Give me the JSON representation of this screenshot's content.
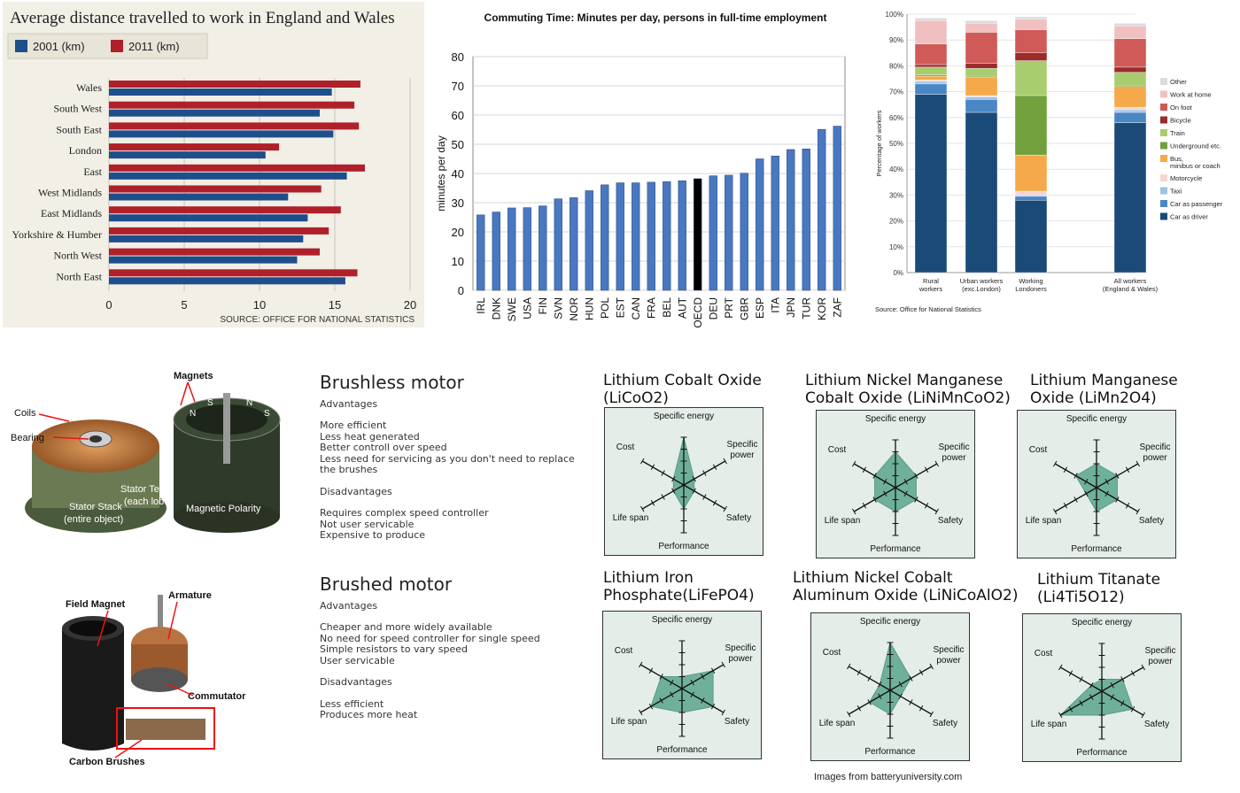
{
  "chart_data": [
    {
      "type": "bar",
      "orientation": "horizontal",
      "title": "Average distance travelled to work in England and Wales",
      "source": "SOURCE: OFFICE FOR NATIONAL STATISTICS",
      "categories": [
        "Wales",
        "South West",
        "South East",
        "London",
        "East",
        "West Midlands",
        "East Midlands",
        "Yorkshire & Humber",
        "North West",
        "North East"
      ],
      "series": [
        {
          "name": "2001 (km)",
          "color": "#1f4e8c",
          "values": [
            14.8,
            14.0,
            14.9,
            10.4,
            15.8,
            11.9,
            13.2,
            12.9,
            12.5,
            15.7
          ]
        },
        {
          "name": "2011 (km)",
          "color": "#b0202a",
          "values": [
            16.7,
            16.3,
            16.6,
            11.3,
            17.0,
            14.1,
            15.4,
            14.6,
            14.0,
            16.5
          ]
        }
      ],
      "xlim": [
        0,
        20
      ],
      "ticks": [
        "0",
        "5",
        "10",
        "15",
        "20"
      ],
      "legend": "top-left",
      "grid": true
    },
    {
      "type": "bar",
      "title": "Commuting Time: Minutes per day, persons in full-time employment",
      "ylabel": "minutes per day",
      "categories": [
        "IRL",
        "DNK",
        "SWE",
        "USA",
        "FIN",
        "SVN",
        "NOR",
        "HUN",
        "POL",
        "EST",
        "CAN",
        "FRA",
        "BEL",
        "AUT",
        "OECD",
        "DEU",
        "PRT",
        "GBR",
        "ESP",
        "ITA",
        "JPN",
        "TUR",
        "KOR",
        "ZAF"
      ],
      "values": [
        25.8,
        26.8,
        28.2,
        28.3,
        28.9,
        31.3,
        31.7,
        34.1,
        36.1,
        36.8,
        36.8,
        37.0,
        37.2,
        37.5,
        38.2,
        39.2,
        39.4,
        40.1,
        45.0,
        46.0,
        48.2,
        48.4,
        55.1,
        56.2
      ],
      "highlight": "OECD",
      "ylim": [
        0,
        80
      ],
      "yticks": [
        "0",
        "10",
        "20",
        "30",
        "40",
        "50",
        "60",
        "70",
        "80"
      ],
      "grid": true
    },
    {
      "type": "bar",
      "stacked": true,
      "ylabel": "Percentage of workers",
      "source": "Source: Office for National Statistics",
      "categories": [
        "Rural workers",
        "Urban workers (exc.London)",
        "Working Londoners",
        "All workers (England & Wales)"
      ],
      "yticks": [
        "0%",
        "10%",
        "20%",
        "30%",
        "40%",
        "50%",
        "60%",
        "70%",
        "80%",
        "90%",
        "100%"
      ],
      "series": [
        {
          "name": "Car as driver",
          "color": "#1a4a78",
          "values": [
            69,
            62,
            28,
            58
          ]
        },
        {
          "name": "Car as passenger",
          "color": "#4a86c4",
          "values": [
            4,
            5,
            1.5,
            4
          ]
        },
        {
          "name": "Taxi",
          "color": "#9dc3e6",
          "values": [
            1,
            1,
            0.5,
            1
          ]
        },
        {
          "name": "Motorcycle",
          "color": "#f8d5d0",
          "values": [
            0.5,
            0.5,
            1.5,
            1
          ]
        },
        {
          "name": "Bus, minibus or coach",
          "color": "#f5a94a",
          "values": [
            1.5,
            7,
            14,
            8
          ]
        },
        {
          "name": "Underground etc.",
          "color": "#72a03c",
          "values": [
            0.5,
            0.5,
            23,
            0.5
          ]
        },
        {
          "name": "Train",
          "color": "#a8cd6e",
          "values": [
            3,
            3,
            13.5,
            5
          ]
        },
        {
          "name": "Bicycle",
          "color": "#9b2c2c",
          "values": [
            1,
            2,
            3,
            2
          ]
        },
        {
          "name": "On foot",
          "color": "#d05a58",
          "values": [
            8,
            12,
            9,
            11
          ]
        },
        {
          "name": "Work at home",
          "color": "#f0c0c0",
          "values": [
            9,
            3.5,
            4,
            5
          ]
        },
        {
          "name": "Other",
          "color": "#dcdcdc",
          "values": [
            1,
            1,
            1,
            1
          ]
        }
      ],
      "legend": "right"
    },
    {
      "type": "radar",
      "axes": [
        "Specific energy",
        "Specific power",
        "Safety",
        "Performance",
        "Life span",
        "Cost"
      ],
      "scale_max": 4,
      "items": [
        {
          "name": "Lithium Cobalt Oxide (LiCoO2)",
          "values": [
            4,
            1,
            1,
            2,
            1,
            1
          ]
        },
        {
          "name": "Lithium Nickel Manganese Cobalt Oxide (LiNiMnCoO2)",
          "values": [
            3,
            2,
            2,
            2,
            2,
            2
          ]
        },
        {
          "name": "Lithium Manganese Oxide (LiMn2O4)",
          "values": [
            2,
            2,
            2,
            2,
            1,
            2
          ]
        },
        {
          "name": "Lithium Iron Phosphate(LiFePO4)",
          "values": [
            1,
            3,
            3,
            2,
            3,
            2
          ]
        },
        {
          "name": "Lithium Nickel Cobalt Aluminum Oxide (LiNiCoAlO2)",
          "values": [
            4,
            2,
            1,
            2,
            2,
            1
          ]
        },
        {
          "name": "Lithium Titanate (Li4Ti5O12)",
          "values": [
            1,
            2,
            3,
            2,
            4,
            1
          ]
        }
      ]
    }
  ],
  "motor": {
    "brushless": {
      "title": "Brushless motor",
      "adv_label": "Advantages",
      "adv": [
        "More efficient",
        "Less heat generated",
        "Better controll over speed",
        "Less need for servicing as you don't need to replace",
        "the brushes"
      ],
      "dis_label": "Disadvantages",
      "dis": [
        "Requires complex speed controller",
        "Not user servicable",
        "Expensive to produce"
      ],
      "img_labels": {
        "magnets": "Magnets",
        "coils": "Coils",
        "bearing": "Bearing",
        "teeth": "Stator Teeth",
        "teeth2": "(each lobe)",
        "stack": "Stator Stack",
        "stack2": "(entire object)",
        "polarity": "Magnetic Polarity",
        "n": "N",
        "s": "S"
      }
    },
    "brushed": {
      "title": "Brushed motor",
      "adv_label": "Advantages",
      "adv": [
        "Cheaper and more widely available",
        "No need for speed controller for single speed",
        "Simple resistors to vary speed",
        "User servicable"
      ],
      "dis_label": "Disadvantages",
      "dis": [
        "Less efficient",
        "Produces more heat"
      ],
      "img_labels": {
        "field": "Field Magnet",
        "armature": "Armature",
        "commutator": "Commutator",
        "brushes": "Carbon Brushes"
      }
    }
  },
  "battery_footer": "Images from batteryuniversity.com"
}
